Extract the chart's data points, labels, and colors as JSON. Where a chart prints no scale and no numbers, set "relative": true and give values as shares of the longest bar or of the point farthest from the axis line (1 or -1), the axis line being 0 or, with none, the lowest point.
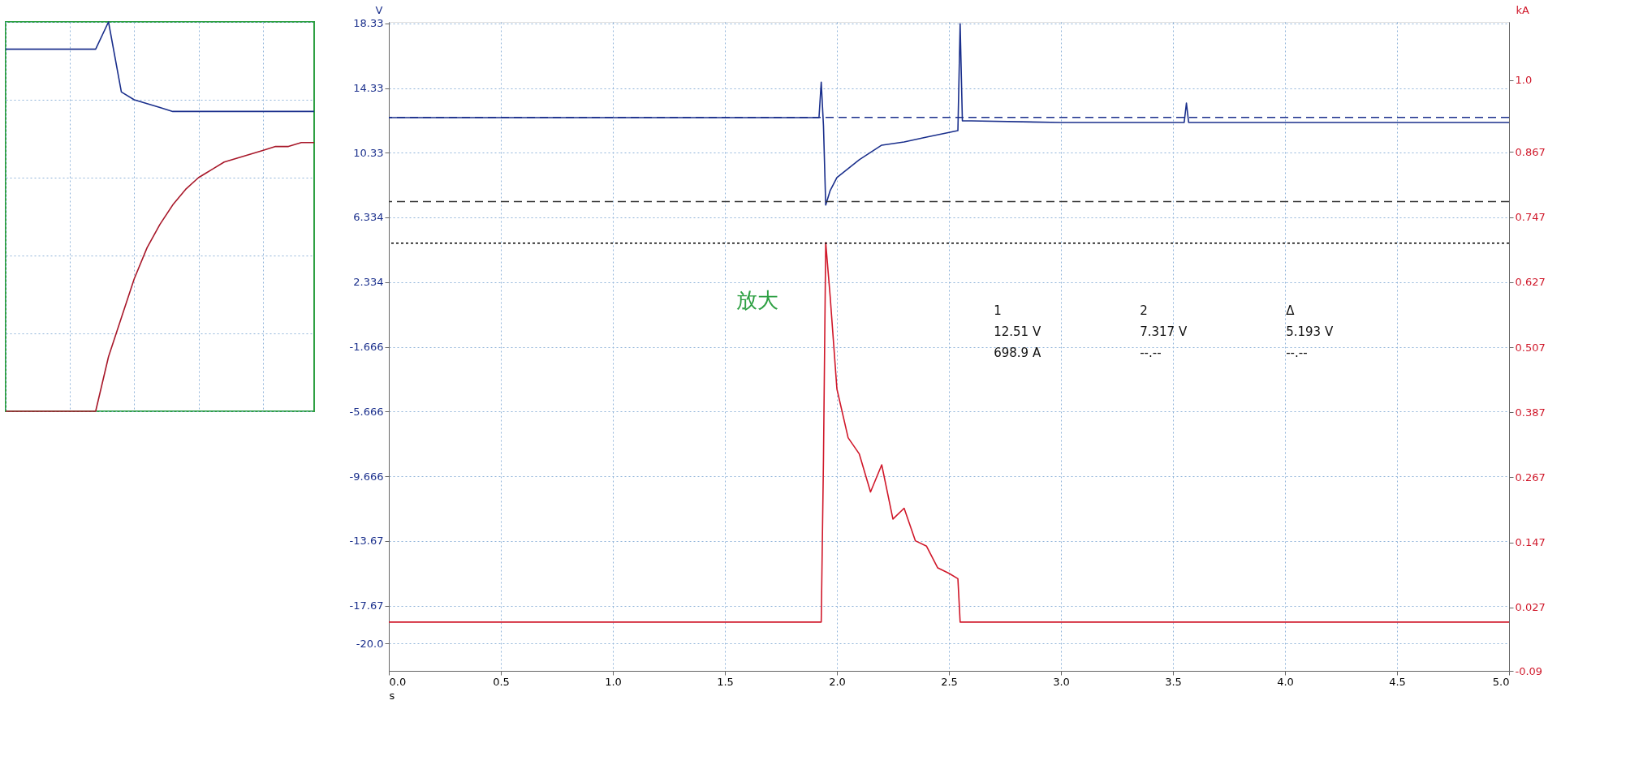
{
  "chart_data": [
    {
      "type": "line",
      "relative": true,
      "categories": [
        null,
        null,
        null,
        null,
        null,
        null,
        null,
        null,
        null,
        null,
        null,
        null,
        null,
        null,
        null,
        null,
        null,
        null,
        null,
        null,
        null,
        null,
        null,
        null,
        null
      ],
      "series": [
        {
          "color": "#1a2f8c",
          "values": [
            0.93,
            0.93,
            0.93,
            0.93,
            0.93,
            0.93,
            0.93,
            0.93,
            1.0,
            0.82,
            0.8,
            0.79,
            0.78,
            0.77,
            0.77,
            0.77,
            0.77,
            0.77,
            0.77,
            0.77,
            0.77,
            0.77,
            0.77,
            0.77,
            0.77
          ]
        },
        {
          "color": "#a8182a",
          "values": [
            0,
            0,
            0,
            0,
            0,
            0,
            0,
            0,
            0.14,
            0.24,
            0.34,
            0.42,
            0.48,
            0.53,
            0.57,
            0.6,
            0.62,
            0.64,
            0.65,
            0.66,
            0.67,
            0.68,
            0.68,
            0.69,
            0.69
          ]
        }
      ],
      "grid": true,
      "tick_labels": false
    },
    {
      "type": "line",
      "xlabel": "s",
      "ylabel": "V",
      "y2label": "kA",
      "xlim": [
        0,
        5
      ],
      "xticks": [
        {
          "value": 0,
          "label": "0.0"
        },
        0.5,
        {
          "value": 1,
          "label": "1.0"
        },
        1.5,
        {
          "value": 2,
          "label": "2.0"
        },
        2.5,
        {
          "value": 3,
          "label": "3.0"
        },
        3.5,
        {
          "value": 4,
          "label": "4.0"
        },
        4.5,
        {
          "value": 5,
          "label": "5.0"
        }
      ],
      "ylim": [
        -21.7,
        18.42
      ],
      "yticks": [
        18.33,
        14.33,
        10.33,
        6.334,
        2.334,
        -1.666,
        -5.666,
        -9.666,
        -13.67,
        -17.67,
        {
          "value": -20,
          "label": "-20.0"
        }
      ],
      "y2lim": [
        -0.09,
        1.107
      ],
      "y2ticks": [
        {
          "value": 1,
          "label": "1.0"
        },
        0.867,
        0.747,
        0.627,
        0.507,
        0.387,
        0.267,
        0.147,
        0.027,
        -0.09
      ],
      "series": [
        {
          "color": "#1a2f8c",
          "x": [
            0,
            0.5,
            1.0,
            1.5,
            1.9,
            1.92,
            1.93,
            1.94,
            1.95,
            1.97,
            2.0,
            2.1,
            2.2,
            2.3,
            2.4,
            2.54,
            2.55,
            2.56,
            2.6,
            3.0,
            3.55,
            3.56,
            3.57,
            4.0,
            4.5,
            5.0
          ],
          "values": [
            12.5,
            12.5,
            12.5,
            12.5,
            12.5,
            12.5,
            14.7,
            12.0,
            7.1,
            8.0,
            8.8,
            9.9,
            10.8,
            11.0,
            11.3,
            11.7,
            18.3,
            12.3,
            12.3,
            12.2,
            12.2,
            13.4,
            12.2,
            12.2,
            12.2,
            12.2
          ]
        },
        {
          "color": "#d0182a",
          "axis": "y2",
          "x": [
            0,
            1.0,
            1.93,
            1.94,
            1.95,
            1.97,
            2.0,
            2.05,
            2.1,
            2.15,
            2.2,
            2.25,
            2.3,
            2.35,
            2.4,
            2.45,
            2.5,
            2.54,
            2.55,
            3.0,
            4.0,
            5.0
          ],
          "values": [
            0,
            0,
            0,
            0.3,
            0.7,
            0.6,
            0.43,
            0.34,
            0.31,
            0.24,
            0.29,
            0.19,
            0.21,
            0.15,
            0.14,
            0.1,
            0.09,
            0.08,
            0,
            0,
            0,
            0
          ]
        }
      ],
      "ref_lines": [
        {
          "axis": "y",
          "value": 12.51,
          "color": "#1a2f8c",
          "line_style": "dashed"
        },
        {
          "axis": "y",
          "value": 7.317,
          "color": "#333333",
          "line_style": "dashed"
        },
        {
          "axis": "y2",
          "value": 0.6989,
          "color": "#000000",
          "line_style": "dotted"
        }
      ],
      "annotations": [
        "放大",
        "1",
        "2",
        "Δ",
        "12.51 V",
        "7.317 V",
        "5.193 V",
        "698.9 A",
        "--.--",
        "--.--"
      ],
      "grid": true
    }
  ]
}
